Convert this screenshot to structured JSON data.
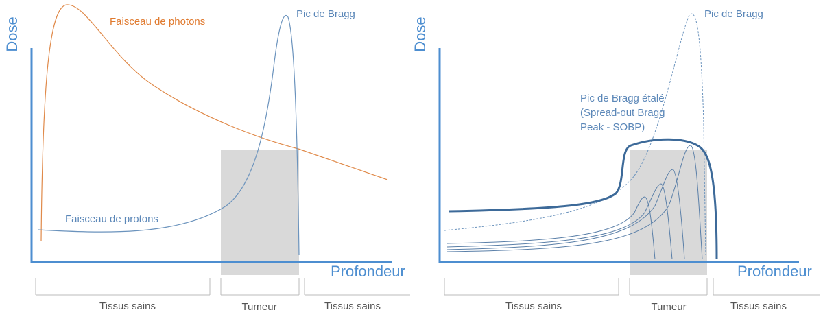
{
  "panels": [
    {
      "y_axis_label": "Dose",
      "x_axis_label": "Profondeur",
      "curve_labels": [
        "Faisceau de photons",
        "Pic de Bragg",
        "Faisceau de protons"
      ],
      "regions": [
        "Tissus sains",
        "Tumeur",
        "Tissus sains"
      ]
    },
    {
      "y_axis_label": "Dose",
      "x_axis_label": "Profondeur",
      "curve_labels": [
        "Pic de Bragg"
      ],
      "sobp_label": [
        "Pic de Bragg étalé",
        "(Spread-out Bragg",
        "Peak - SOBP)"
      ],
      "regions": [
        "Tissus sains",
        "Tumeur",
        "Tissus sains"
      ]
    }
  ]
}
